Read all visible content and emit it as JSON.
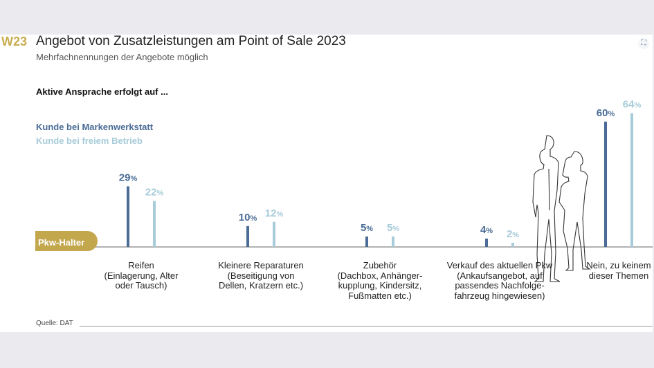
{
  "header": {
    "code": "W23",
    "title": "Angebot von Zusatzleistungen am Point of Sale 2023",
    "subtitle": "Mehrfachnennungen der Angebote möglich",
    "question": "Aktive Ansprache erfolgt auf ...",
    "base_label": "Pkw-Halter",
    "source": "Quelle: DAT",
    "expand_icon": "expand-icon"
  },
  "chart_data": {
    "type": "bar",
    "title": "Angebot von Zusatzleistungen am Point of Sale 2023",
    "subtitle": "Mehrfachnennungen der Angebote möglich",
    "categories": [
      "Reifen\n(Einlagerung, Alter\noder Tausch)",
      "Kleinere Reparaturen\n(Beseitigung von\nDellen, Kratzern etc.)",
      "Zubehör\n(Dachbox, Anhänger-\nkupplung, Kindersitz,\nFußmatten etc.)",
      "Verkauf des aktuellen Pkw\n(Ankaufsangebot, auf\npassendes Nachfolge-\nfahrzeug hingewiesen)",
      "Nein, zu keinem\ndieser Themen"
    ],
    "series": [
      {
        "name": "Kunde bei Markenwerkstatt",
        "color": "#4a6c96",
        "values": [
          29,
          10,
          5,
          4,
          60
        ]
      },
      {
        "name": "Kunde bei freiem Betrieb",
        "color": "#a7cbd9",
        "values": [
          22,
          12,
          5,
          2,
          64
        ]
      }
    ],
    "unit": "%",
    "ylim": [
      0,
      70
    ],
    "grid": false,
    "legend": "top-left"
  }
}
